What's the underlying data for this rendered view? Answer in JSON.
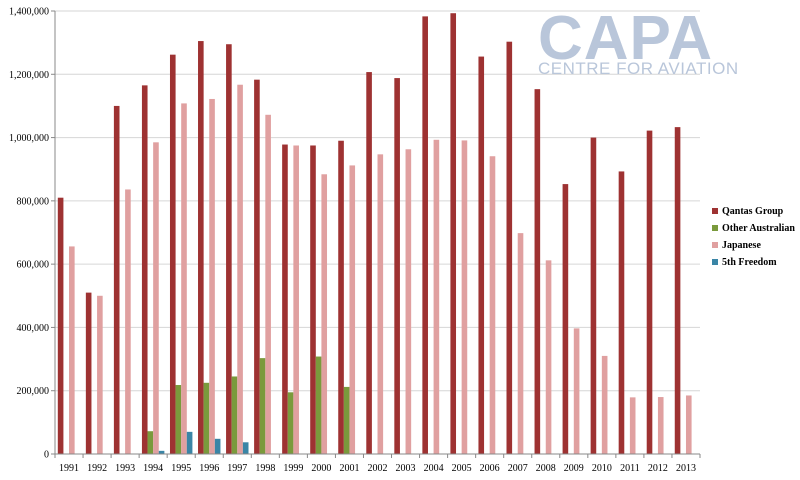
{
  "logo": {
    "main": "CAPA",
    "sub": "CENTRE FOR AVIATION",
    "color": "#b9c6da"
  },
  "chart_data": {
    "type": "bar",
    "title": "",
    "xlabel": "",
    "ylabel": "",
    "ylim": [
      0,
      1400000
    ],
    "yticks": [
      0,
      200000,
      400000,
      600000,
      800000,
      1000000,
      1200000,
      1400000
    ],
    "ytick_labels": [
      "0",
      "200,000",
      "400,000",
      "600,000",
      "800,000",
      "1,000,000",
      "1,200,000",
      "1,400,000"
    ],
    "grid": true,
    "legend_position": "right",
    "categories": [
      "1991",
      "1992",
      "1993",
      "1994",
      "1995",
      "1996",
      "1997",
      "1998",
      "1999",
      "2000",
      "2001",
      "2002",
      "2003",
      "2004",
      "2005",
      "2006",
      "2007",
      "2008",
      "2009",
      "2010",
      "2011",
      "2012",
      "2013"
    ],
    "series": [
      {
        "name": "Qantas Group",
        "color": "#9e3232",
        "values": [
          810000,
          510000,
          1100000,
          1165000,
          1262000,
          1305000,
          1295000,
          1183000,
          978000,
          975000,
          990000,
          1207000,
          1188000,
          1383000,
          1393000,
          1256000,
          1303000,
          1153000,
          853000,
          1000000,
          893000,
          1022000,
          1033000
        ]
      },
      {
        "name": "Other Australian",
        "color": "#7a9a3c",
        "values": [
          0,
          0,
          0,
          72000,
          218000,
          225000,
          245000,
          303000,
          195000,
          308000,
          212000,
          0,
          0,
          0,
          0,
          0,
          0,
          0,
          0,
          0,
          0,
          0,
          0
        ]
      },
      {
        "name": "Japanese",
        "color": "#e0a0a0",
        "values": [
          656000,
          500000,
          836000,
          985000,
          1108000,
          1122000,
          1167000,
          1072000,
          975000,
          884000,
          912000,
          947000,
          963000,
          993000,
          991000,
          941000,
          698000,
          612000,
          397000,
          310000,
          179000,
          180000,
          185000
        ]
      },
      {
        "name": "5th Freedom",
        "color": "#3a85a6",
        "values": [
          0,
          0,
          0,
          10000,
          70000,
          48000,
          37000,
          0,
          0,
          0,
          0,
          0,
          0,
          0,
          0,
          0,
          0,
          0,
          0,
          0,
          0,
          0,
          0
        ]
      }
    ]
  }
}
